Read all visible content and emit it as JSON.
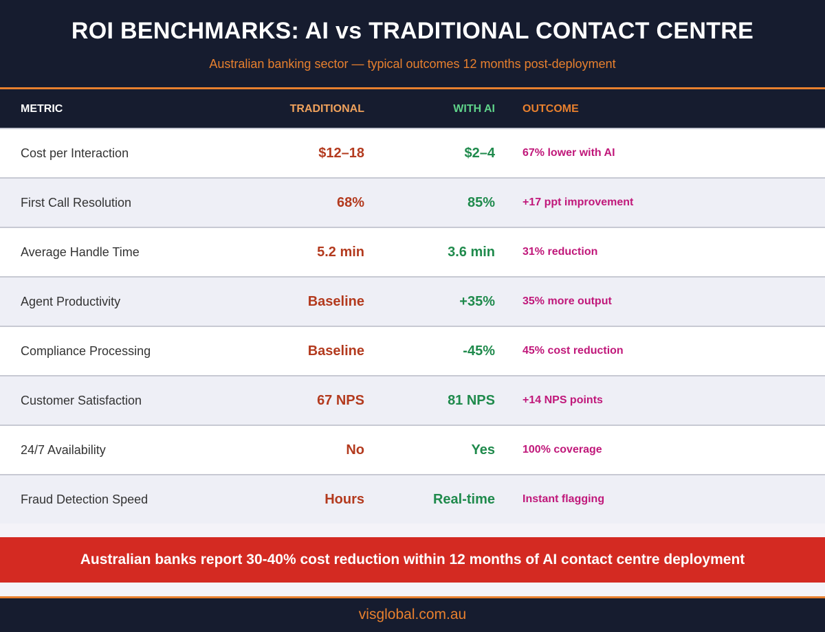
{
  "header": {
    "title": "ROI BENCHMARKS: AI vs TRADITIONAL CONTACT CENTRE",
    "subtitle": "Australian banking sector — typical outcomes 12 months post-deployment"
  },
  "table": {
    "columns": {
      "metric": "METRIC",
      "traditional": "TRADITIONAL",
      "with_ai": "WITH AI",
      "outcome": "OUTCOME"
    },
    "rows": [
      {
        "metric": "Cost per Interaction",
        "traditional": "$12–18",
        "with_ai": "$2–4",
        "outcome": "67% lower with AI"
      },
      {
        "metric": "First Call Resolution",
        "traditional": "68%",
        "with_ai": "85%",
        "outcome": "+17 ppt improvement"
      },
      {
        "metric": "Average Handle Time",
        "traditional": "5.2 min",
        "with_ai": "3.6 min",
        "outcome": "31% reduction"
      },
      {
        "metric": "Agent Productivity",
        "traditional": "Baseline",
        "with_ai": "+35%",
        "outcome": "35% more output"
      },
      {
        "metric": "Compliance Processing",
        "traditional": "Baseline",
        "with_ai": "-45%",
        "outcome": "45% cost reduction"
      },
      {
        "metric": "Customer Satisfaction",
        "traditional": "67 NPS",
        "with_ai": "81 NPS",
        "outcome": "+14 NPS points"
      },
      {
        "metric": "24/7 Availability",
        "traditional": "No",
        "with_ai": "Yes",
        "outcome": "100% coverage"
      },
      {
        "metric": "Fraud Detection Speed",
        "traditional": "Hours",
        "with_ai": "Real-time",
        "outcome": "Instant flagging"
      }
    ]
  },
  "banner": {
    "text": "Australian banks report 30-40% cost reduction within 12 months of AI contact centre deployment"
  },
  "footer": {
    "site": "visglobal.com.au"
  },
  "colors": {
    "navy": "#161c2f",
    "orange": "#e8802e",
    "traditional_value": "#b33a1e",
    "ai_value": "#1f8a4c",
    "outcome": "#c0187a",
    "banner_red": "#d42a22"
  }
}
